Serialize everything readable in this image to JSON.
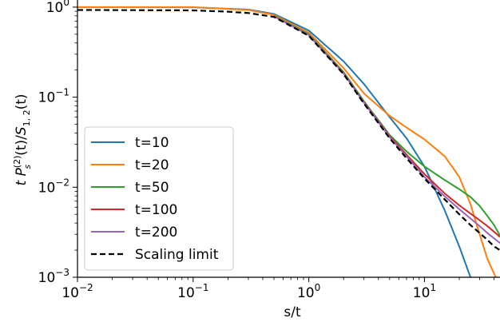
{
  "chart_data": {
    "type": "line",
    "xscale": "log",
    "yscale": "log",
    "xlim": [
      0.01,
      45
    ],
    "ylim": [
      0.001,
      1.2
    ],
    "xlabel": "s/t",
    "ylabel_parts": {
      "t": "t",
      "P": "P",
      "sup": "(2)",
      "sub_s": "s",
      "mid": "(t)/",
      "S": "S",
      "sub_12": "1, 2",
      "end": "(t)"
    },
    "x_ticks": [
      {
        "value": 0.01,
        "base": "10",
        "exp": "−2"
      },
      {
        "value": 0.1,
        "base": "10",
        "exp": "−1"
      },
      {
        "value": 1,
        "base": "10",
        "exp": "0"
      },
      {
        "value": 10,
        "base": "10",
        "exp": "1"
      }
    ],
    "y_ticks": [
      {
        "value": 0.001,
        "base": "10",
        "exp": "−3"
      },
      {
        "value": 0.01,
        "base": "10",
        "exp": "−2"
      },
      {
        "value": 0.1,
        "base": "10",
        "exp": "−1"
      },
      {
        "value": 1,
        "base": "10",
        "exp": "0"
      }
    ],
    "legend_position": "lower-left",
    "series": [
      {
        "name": "t=10",
        "color": "#1f77b4",
        "dash": "solid",
        "x": [
          0.01,
          0.1,
          0.3,
          0.5,
          1,
          2,
          3,
          5,
          7,
          10,
          15,
          20,
          25
        ],
        "y": [
          1.0,
          0.995,
          0.94,
          0.84,
          0.55,
          0.25,
          0.14,
          0.06,
          0.035,
          0.017,
          0.0055,
          0.0022,
          0.001
        ]
      },
      {
        "name": "t=20",
        "color": "#ff7f0e",
        "dash": "solid",
        "x": [
          0.01,
          0.1,
          0.3,
          0.5,
          1,
          2,
          3,
          5,
          7,
          10,
          15,
          20,
          25,
          30,
          35,
          40,
          45
        ],
        "y": [
          1.0,
          1.0,
          0.93,
          0.82,
          0.52,
          0.21,
          0.11,
          0.062,
          0.046,
          0.034,
          0.022,
          0.013,
          0.0065,
          0.003,
          0.0016,
          0.0011,
          0.0008
        ]
      },
      {
        "name": "t=50",
        "color": "#2ca02c",
        "dash": "solid",
        "x": [
          0.5,
          1,
          2,
          3,
          5,
          7,
          10,
          15,
          20,
          25,
          30,
          35,
          40,
          45
        ],
        "y": [
          0.8,
          0.5,
          0.19,
          0.09,
          0.038,
          0.025,
          0.017,
          0.012,
          0.0095,
          0.0078,
          0.0062,
          0.0048,
          0.0038,
          0.0029
        ]
      },
      {
        "name": "t=100",
        "color": "#d62728",
        "dash": "solid",
        "x": [
          0.5,
          1,
          2,
          3,
          5,
          7,
          10,
          15,
          20,
          25,
          30,
          35,
          40,
          45
        ],
        "y": [
          0.79,
          0.49,
          0.185,
          0.088,
          0.037,
          0.023,
          0.014,
          0.0085,
          0.0063,
          0.0051,
          0.0043,
          0.0037,
          0.0032,
          0.0028
        ]
      },
      {
        "name": "t=200",
        "color": "#9467bd",
        "dash": "solid",
        "x": [
          0.5,
          1,
          2,
          3,
          5,
          7,
          10,
          15,
          20,
          25,
          30,
          35,
          40,
          45
        ],
        "y": [
          0.79,
          0.49,
          0.183,
          0.087,
          0.036,
          0.022,
          0.013,
          0.0079,
          0.0057,
          0.0045,
          0.0037,
          0.0031,
          0.0027,
          0.0024
        ]
      },
      {
        "name": "Scaling limit",
        "color": "#000000",
        "dash": "dashed",
        "x": [
          0.01,
          0.1,
          0.2,
          0.3,
          0.5,
          1,
          2,
          3,
          5,
          7,
          10,
          15,
          20,
          25,
          30,
          35,
          40,
          45
        ],
        "y": [
          0.93,
          0.92,
          0.89,
          0.86,
          0.78,
          0.48,
          0.18,
          0.085,
          0.035,
          0.021,
          0.0125,
          0.0073,
          0.005,
          0.0038,
          0.0031,
          0.0026,
          0.0022,
          0.002
        ]
      }
    ]
  }
}
